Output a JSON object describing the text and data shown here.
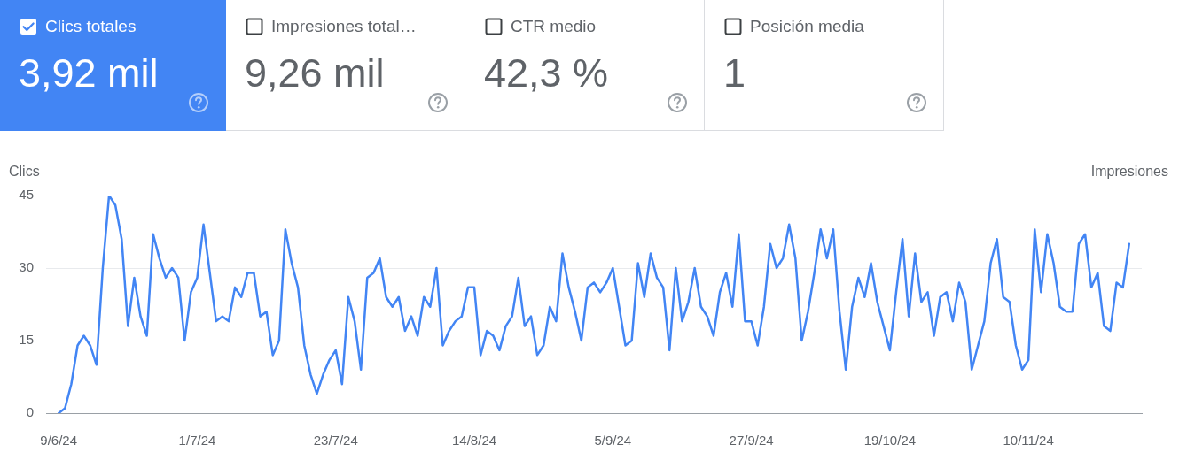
{
  "chart_data": [
    {
      "type": "other",
      "title": "Clics totales",
      "annotations": [
        "3,92 mil"
      ],
      "color": "#4285f4"
    },
    {
      "type": "other",
      "title": "Impresiones total…",
      "annotations": [
        "9,26 mil"
      ]
    },
    {
      "type": "other",
      "title": "CTR medio",
      "annotations": [
        "42,3 %"
      ]
    },
    {
      "type": "other",
      "title": "Posición media",
      "annotations": [
        "1"
      ]
    },
    {
      "type": "line",
      "ylabel": "Clics",
      "y2label": "Impresiones",
      "color": "#4285f4",
      "marker": "none",
      "line_style": "solid",
      "grid": "y",
      "xlim": [
        "2024-06-07",
        "2024-11-28"
      ],
      "xticks": [
        {
          "value": "2024-06-09",
          "label": "9/6/24"
        },
        {
          "value": "2024-07-01",
          "label": "1/7/24"
        },
        {
          "value": "2024-07-23",
          "label": "23/7/24"
        },
        {
          "value": "2024-08-14",
          "label": "14/8/24"
        },
        {
          "value": "2024-09-05",
          "label": "5/9/24"
        },
        {
          "value": "2024-09-27",
          "label": "27/9/24"
        },
        {
          "value": "2024-10-19",
          "label": "19/10/24"
        },
        {
          "value": "2024-11-10",
          "label": "10/11/24"
        }
      ],
      "ylim": [
        0,
        45
      ],
      "yticks": [
        0,
        15,
        30,
        45
      ],
      "x": [
        "2024-06-09",
        "2024-06-10",
        "2024-06-11",
        "2024-06-12",
        "2024-06-13",
        "2024-06-14",
        "2024-06-15",
        "2024-06-16",
        "2024-06-17",
        "2024-06-18",
        "2024-06-19",
        "2024-06-20",
        "2024-06-21",
        "2024-06-22",
        "2024-06-23",
        "2024-06-24",
        "2024-06-25",
        "2024-06-26",
        "2024-06-27",
        "2024-06-28",
        "2024-06-29",
        "2024-06-30",
        "2024-07-01",
        "2024-07-02",
        "2024-07-03",
        "2024-07-04",
        "2024-07-05",
        "2024-07-06",
        "2024-07-07",
        "2024-07-08",
        "2024-07-09",
        "2024-07-10",
        "2024-07-11",
        "2024-07-12",
        "2024-07-13",
        "2024-07-14",
        "2024-07-15",
        "2024-07-16",
        "2024-07-17",
        "2024-07-18",
        "2024-07-19",
        "2024-07-20",
        "2024-07-21",
        "2024-07-22",
        "2024-07-23",
        "2024-07-24",
        "2024-07-25",
        "2024-07-26",
        "2024-07-27",
        "2024-07-28",
        "2024-07-29",
        "2024-07-30",
        "2024-07-31",
        "2024-08-01",
        "2024-08-02",
        "2024-08-03",
        "2024-08-04",
        "2024-08-05",
        "2024-08-06",
        "2024-08-07",
        "2024-08-08",
        "2024-08-09",
        "2024-08-10",
        "2024-08-11",
        "2024-08-12",
        "2024-08-13",
        "2024-08-14",
        "2024-08-15",
        "2024-08-16",
        "2024-08-17",
        "2024-08-18",
        "2024-08-19",
        "2024-08-20",
        "2024-08-21",
        "2024-08-22",
        "2024-08-23",
        "2024-08-24",
        "2024-08-25",
        "2024-08-26",
        "2024-08-27",
        "2024-08-28",
        "2024-08-29",
        "2024-08-30",
        "2024-08-31",
        "2024-09-01",
        "2024-09-02",
        "2024-09-03",
        "2024-09-04",
        "2024-09-05",
        "2024-09-06",
        "2024-09-07",
        "2024-09-08",
        "2024-09-09",
        "2024-09-10",
        "2024-09-11",
        "2024-09-12",
        "2024-09-13",
        "2024-09-14",
        "2024-09-15",
        "2024-09-16",
        "2024-09-17",
        "2024-09-18",
        "2024-09-19",
        "2024-09-20",
        "2024-09-21",
        "2024-09-22",
        "2024-09-23",
        "2024-09-24",
        "2024-09-25",
        "2024-09-26",
        "2024-09-27",
        "2024-09-28",
        "2024-09-29",
        "2024-09-30",
        "2024-10-01",
        "2024-10-02",
        "2024-10-03",
        "2024-10-04",
        "2024-10-05",
        "2024-10-06",
        "2024-10-07",
        "2024-10-08",
        "2024-10-09",
        "2024-10-10",
        "2024-10-11",
        "2024-10-12",
        "2024-10-13",
        "2024-10-14",
        "2024-10-15",
        "2024-10-16",
        "2024-10-17",
        "2024-10-18",
        "2024-10-19",
        "2024-10-20",
        "2024-10-21",
        "2024-10-22",
        "2024-10-23",
        "2024-10-24",
        "2024-10-25",
        "2024-10-26",
        "2024-10-27",
        "2024-10-28",
        "2024-10-29",
        "2024-10-30",
        "2024-10-31",
        "2024-11-01",
        "2024-11-02",
        "2024-11-03",
        "2024-11-04",
        "2024-11-05",
        "2024-11-06",
        "2024-11-07",
        "2024-11-08",
        "2024-11-09",
        "2024-11-10",
        "2024-11-11",
        "2024-11-12",
        "2024-11-13",
        "2024-11-14",
        "2024-11-15",
        "2024-11-16",
        "2024-11-17",
        "2024-11-18",
        "2024-11-19",
        "2024-11-20",
        "2024-11-21",
        "2024-11-22",
        "2024-11-23",
        "2024-11-24",
        "2024-11-25",
        "2024-11-26"
      ],
      "values": [
        0,
        1,
        6,
        14,
        16,
        14,
        10,
        30,
        45,
        43,
        36,
        18,
        28,
        20,
        16,
        37,
        32,
        28,
        30,
        28,
        15,
        25,
        28,
        39,
        29,
        19,
        20,
        19,
        26,
        24,
        29,
        29,
        20,
        21,
        12,
        15,
        38,
        31,
        26,
        14,
        8,
        4,
        8,
        11,
        13,
        6,
        24,
        19,
        9,
        28,
        29,
        32,
        24,
        22,
        24,
        17,
        20,
        16,
        24,
        22,
        30,
        14,
        17,
        19,
        20,
        26,
        26,
        12,
        17,
        16,
        13,
        18,
        20,
        28,
        18,
        20,
        12,
        14,
        22,
        19,
        33,
        26,
        21,
        15,
        26,
        27,
        25,
        27,
        30,
        22,
        14,
        15,
        31,
        24,
        33,
        28,
        26,
        13,
        30,
        19,
        23,
        30,
        22,
        20,
        16,
        25,
        29,
        22,
        37,
        19,
        19,
        14,
        22,
        35,
        30,
        32,
        39,
        32,
        15,
        21,
        29,
        38,
        32,
        38,
        21,
        9,
        22,
        28,
        24,
        31,
        23,
        18,
        13,
        25,
        36,
        20,
        33,
        23,
        25,
        16,
        24,
        25,
        19,
        27,
        23,
        9,
        14,
        19,
        31,
        36,
        24,
        23,
        14,
        9,
        11,
        38,
        25,
        37,
        31,
        22,
        21,
        21,
        35,
        37,
        26,
        29,
        18,
        17,
        27,
        26,
        35
      ]
    }
  ]
}
